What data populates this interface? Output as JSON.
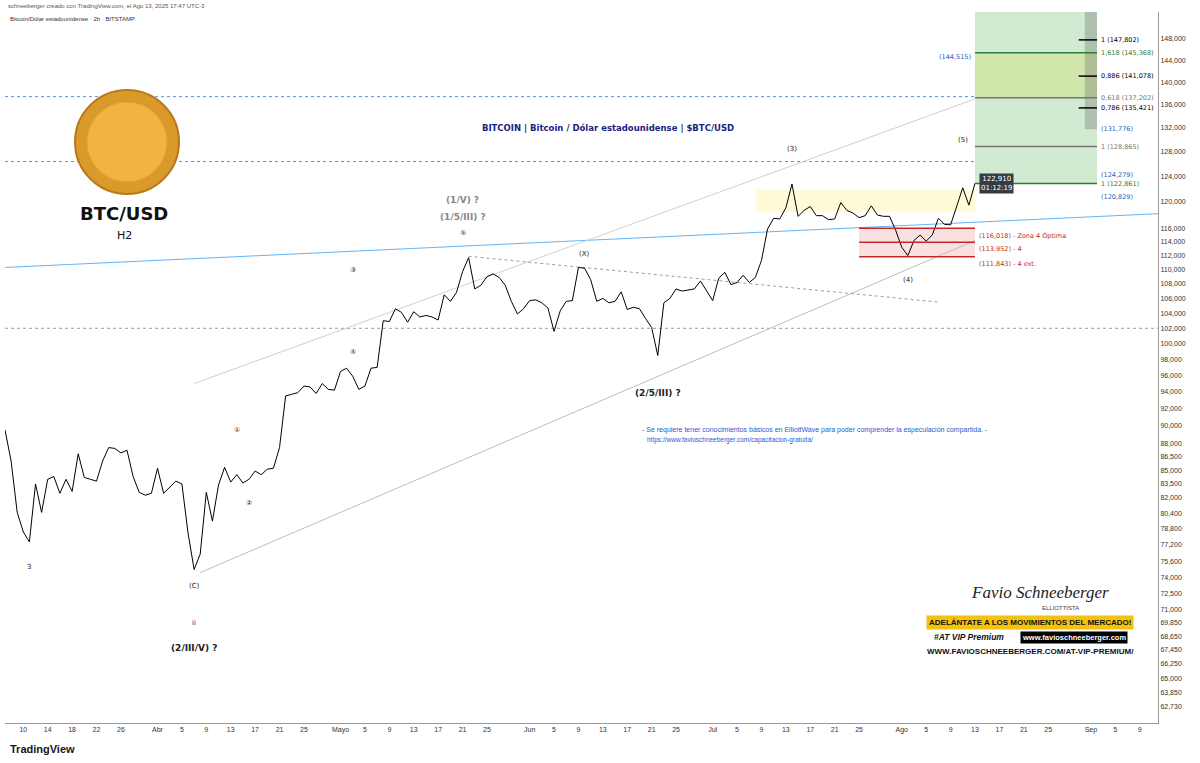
{
  "header": {
    "creator": "schneeberger creado con TradingView.com, el Ago 13, 2025 17:47 UTC-3",
    "symbol_line": "Bitcoin/Dólar estadounidense · 2h · BITSTAMP"
  },
  "logo": {
    "symbol": "BTC/USD",
    "timeframe": "H2"
  },
  "note": {
    "text": "- Se requiere tener conocimientos básicos en ElliottWave para poder comprender la especulación compartida. -",
    "link": "https://www.favioschneeberger.com/capacitacion-gratuita/"
  },
  "branding": {
    "name": "Favio Schneeberger",
    "role": "ELLIOTTISTA",
    "slogan": "ADELÁNTATE A LOS MOVIMIENTOS DEL MERCADO!",
    "vip": "#AT VIP Premium",
    "site": "www.favioschneeberger.com",
    "url": "WWW.FAVIOSCHNEEBERGER.COM/AT-VIP-PREMIUM/"
  },
  "footer": "TradingView",
  "chart_data": {
    "type": "line",
    "title": "BITCOIN | Bitcoin / Dólar estadounidense | $BTC/USD",
    "log": "y",
    "grid": false,
    "color": "#000000",
    "xlim": [
      "2025-03-07",
      "2025-09-12"
    ],
    "xticks": [
      {
        "value": "2025-03-10",
        "label": "10"
      },
      {
        "value": "2025-03-14",
        "label": "14"
      },
      {
        "value": "2025-03-18",
        "label": "18"
      },
      {
        "value": "2025-03-22",
        "label": "22"
      },
      {
        "value": "2025-03-26",
        "label": "26"
      },
      {
        "value": "2025-04-01",
        "label": "Abr"
      },
      {
        "value": "2025-04-05",
        "label": "5"
      },
      {
        "value": "2025-04-09",
        "label": "9"
      },
      {
        "value": "2025-04-13",
        "label": "13"
      },
      {
        "value": "2025-04-17",
        "label": "17"
      },
      {
        "value": "2025-04-21",
        "label": "21"
      },
      {
        "value": "2025-04-25",
        "label": "25"
      },
      {
        "value": "2025-05-01",
        "label": "Mayo"
      },
      {
        "value": "2025-05-05",
        "label": "5"
      },
      {
        "value": "2025-05-09",
        "label": "9"
      },
      {
        "value": "2025-05-13",
        "label": "13"
      },
      {
        "value": "2025-05-17",
        "label": "17"
      },
      {
        "value": "2025-05-21",
        "label": "21"
      },
      {
        "value": "2025-05-25",
        "label": "25"
      },
      {
        "value": "2025-06-01",
        "label": "Jun"
      },
      {
        "value": "2025-06-05",
        "label": "5"
      },
      {
        "value": "2025-06-09",
        "label": "9"
      },
      {
        "value": "2025-06-13",
        "label": "13"
      },
      {
        "value": "2025-06-17",
        "label": "17"
      },
      {
        "value": "2025-06-21",
        "label": "21"
      },
      {
        "value": "2025-06-25",
        "label": "25"
      },
      {
        "value": "2025-07-01",
        "label": "Jul"
      },
      {
        "value": "2025-07-05",
        "label": "5"
      },
      {
        "value": "2025-07-09",
        "label": "9"
      },
      {
        "value": "2025-07-13",
        "label": "13"
      },
      {
        "value": "2025-07-17",
        "label": "17"
      },
      {
        "value": "2025-07-21",
        "label": "21"
      },
      {
        "value": "2025-07-25",
        "label": "25"
      },
      {
        "value": "2025-08-01",
        "label": "Ago"
      },
      {
        "value": "2025-08-05",
        "label": "5"
      },
      {
        "value": "2025-08-09",
        "label": "9"
      },
      {
        "value": "2025-08-13",
        "label": "13"
      },
      {
        "value": "2025-08-17",
        "label": "17"
      },
      {
        "value": "2025-08-21",
        "label": "21"
      },
      {
        "value": "2025-08-25",
        "label": "25"
      },
      {
        "value": "2025-09-01",
        "label": "Sep"
      },
      {
        "value": "2025-09-05",
        "label": "5"
      },
      {
        "value": "2025-09-09",
        "label": "9"
      }
    ],
    "ylim": [
      61400,
      153200
    ],
    "yticks": [
      {
        "value": 148000,
        "label": "148,000"
      },
      {
        "value": 144000,
        "label": "144,000"
      },
      {
        "value": 140000,
        "label": "140,000"
      },
      {
        "value": 136000,
        "label": "136,000"
      },
      {
        "value": 132000,
        "label": "132,000"
      },
      {
        "value": 128000,
        "label": "128,000"
      },
      {
        "value": 124000,
        "label": "124,000"
      },
      {
        "value": 120000,
        "label": "120,000"
      },
      {
        "value": 116000,
        "label": "116,000"
      },
      {
        "value": 114000,
        "label": "114,000"
      },
      {
        "value": 112000,
        "label": "112,000"
      },
      {
        "value": 110000,
        "label": "110,000"
      },
      {
        "value": 108000,
        "label": "108,000"
      },
      {
        "value": 106000,
        "label": "106,000"
      },
      {
        "value": 104000,
        "label": "104,000"
      },
      {
        "value": 102000,
        "label": "102,000"
      },
      {
        "value": 100000,
        "label": "100,000"
      },
      {
        "value": 98000,
        "label": "98,000"
      },
      {
        "value": 96000,
        "label": "96,000"
      },
      {
        "value": 94000,
        "label": "94,000"
      },
      {
        "value": 92000,
        "label": "92,000"
      },
      {
        "value": 90000,
        "label": "90,000"
      },
      {
        "value": 88000,
        "label": "88,000"
      },
      {
        "value": 86500,
        "label": "86,500"
      },
      {
        "value": 85000,
        "label": "85,000"
      },
      {
        "value": 83500,
        "label": "83,500"
      },
      {
        "value": 82000,
        "label": "82,000"
      },
      {
        "value": 80400,
        "label": "80,400"
      },
      {
        "value": 78800,
        "label": "78,800"
      },
      {
        "value": 77200,
        "label": "77,200"
      },
      {
        "value": 75600,
        "label": "75,600"
      },
      {
        "value": 74000,
        "label": "74,000"
      },
      {
        "value": 72500,
        "label": "72,500"
      },
      {
        "value": 71000,
        "label": "71,000"
      },
      {
        "value": 69850,
        "label": "69,850"
      },
      {
        "value": 68650,
        "label": "68,650"
      },
      {
        "value": 67450,
        "label": "67,450"
      },
      {
        "value": 66250,
        "label": "66,250"
      },
      {
        "value": 65000,
        "label": "65,000"
      },
      {
        "value": 63850,
        "label": "63,850"
      },
      {
        "value": 62730,
        "label": "62,730"
      }
    ],
    "x": [
      "2025-03-07",
      "2025-03-08",
      "2025-03-09",
      "2025-03-10",
      "2025-03-11",
      "2025-03-12",
      "2025-03-13",
      "2025-03-14",
      "2025-03-15",
      "2025-03-16",
      "2025-03-17",
      "2025-03-18",
      "2025-03-19",
      "2025-03-20",
      "2025-03-21",
      "2025-03-22",
      "2025-03-23",
      "2025-03-24",
      "2025-03-25",
      "2025-03-26",
      "2025-03-27",
      "2025-03-28",
      "2025-03-29",
      "2025-03-30",
      "2025-03-31",
      "2025-04-01",
      "2025-04-02",
      "2025-04-03",
      "2025-04-04",
      "2025-04-05",
      "2025-04-06",
      "2025-04-07",
      "2025-04-08",
      "2025-04-09",
      "2025-04-10",
      "2025-04-11",
      "2025-04-12",
      "2025-04-13",
      "2025-04-14",
      "2025-04-15",
      "2025-04-16",
      "2025-04-17",
      "2025-04-18",
      "2025-04-19",
      "2025-04-20",
      "2025-04-21",
      "2025-04-22",
      "2025-04-23",
      "2025-04-24",
      "2025-04-25",
      "2025-04-26",
      "2025-04-27",
      "2025-04-28",
      "2025-04-29",
      "2025-04-30",
      "2025-05-01",
      "2025-05-02",
      "2025-05-03",
      "2025-05-04",
      "2025-05-05",
      "2025-05-06",
      "2025-05-07",
      "2025-05-08",
      "2025-05-09",
      "2025-05-10",
      "2025-05-11",
      "2025-05-12",
      "2025-05-13",
      "2025-05-14",
      "2025-05-15",
      "2025-05-16",
      "2025-05-17",
      "2025-05-18",
      "2025-05-19",
      "2025-05-20",
      "2025-05-21",
      "2025-05-22",
      "2025-05-23",
      "2025-05-24",
      "2025-05-25",
      "2025-05-26",
      "2025-05-27",
      "2025-05-28",
      "2025-05-29",
      "2025-05-30",
      "2025-05-31",
      "2025-06-01",
      "2025-06-02",
      "2025-06-03",
      "2025-06-04",
      "2025-06-05",
      "2025-06-06",
      "2025-06-07",
      "2025-06-08",
      "2025-06-09",
      "2025-06-10",
      "2025-06-11",
      "2025-06-12",
      "2025-06-13",
      "2025-06-14",
      "2025-06-15",
      "2025-06-16",
      "2025-06-17",
      "2025-06-18",
      "2025-06-19",
      "2025-06-20",
      "2025-06-21",
      "2025-06-22",
      "2025-06-23",
      "2025-06-24",
      "2025-06-25",
      "2025-06-26",
      "2025-06-27",
      "2025-06-28",
      "2025-06-29",
      "2025-06-30",
      "2025-07-01",
      "2025-07-02",
      "2025-07-03",
      "2025-07-04",
      "2025-07-05",
      "2025-07-06",
      "2025-07-07",
      "2025-07-08",
      "2025-07-09",
      "2025-07-10",
      "2025-07-11",
      "2025-07-12",
      "2025-07-13",
      "2025-07-14",
      "2025-07-15",
      "2025-07-16",
      "2025-07-17",
      "2025-07-18",
      "2025-07-19",
      "2025-07-20",
      "2025-07-21",
      "2025-07-22",
      "2025-07-23",
      "2025-07-24",
      "2025-07-25",
      "2025-07-26",
      "2025-07-27",
      "2025-07-28",
      "2025-07-29",
      "2025-07-30",
      "2025-07-31",
      "2025-08-01",
      "2025-08-02",
      "2025-08-03",
      "2025-08-04",
      "2025-08-05",
      "2025-08-06",
      "2025-08-07",
      "2025-08-08",
      "2025-08-09",
      "2025-08-10",
      "2025-08-11",
      "2025-08-12",
      "2025-08-13"
    ],
    "values": [
      89500,
      86000,
      80500,
      78500,
      77500,
      83500,
      80500,
      84000,
      84300,
      82500,
      84000,
      82700,
      86800,
      84200,
      84000,
      83800,
      86000,
      87500,
      87400,
      86900,
      87200,
      84300,
      82600,
      82300,
      82500,
      85200,
      82500,
      83200,
      83800,
      83500,
      78400,
      74800,
      76300,
      82600,
      79600,
      83400,
      85300,
      83700,
      84500,
      83600,
      84000,
      84900,
      84500,
      85100,
      85200,
      87500,
      93500,
      93700,
      93900,
      94700,
      94600,
      93800,
      95000,
      94300,
      94200,
      96500,
      96900,
      95900,
      94300,
      94700,
      96900,
      97000,
      103000,
      102900,
      104600,
      104100,
      102800,
      104200,
      103500,
      103700,
      103500,
      103100,
      106500,
      105600,
      106800,
      109700,
      111700,
      107300,
      107800,
      109000,
      109400,
      108900,
      107800,
      105600,
      103900,
      104600,
      105700,
      105800,
      105400,
      104700,
      101600,
      104300,
      105600,
      105700,
      110300,
      110200,
      108600,
      105600,
      106000,
      105400,
      105600,
      106900,
      104500,
      104800,
      104600,
      103300,
      102100,
      98500,
      105400,
      106000,
      107300,
      107000,
      107100,
      107300,
      108400,
      107100,
      105700,
      108800,
      109600,
      107900,
      108200,
      109200,
      108200,
      108900,
      111300,
      115900,
      117500,
      117400,
      119100,
      122800,
      117800,
      118700,
      119300,
      117900,
      117900,
      117300,
      117400,
      119900,
      118700,
      118300,
      117600,
      117900,
      119400,
      118000,
      117800,
      117800,
      115700,
      113200,
      112000,
      114200,
      115000,
      114100,
      115000,
      117500,
      116600,
      116500,
      119300,
      122200,
      119500,
      122910
    ],
    "last_price": {
      "value": 122910,
      "label": "122,910",
      "countdown": "01:12:19"
    },
    "zones": [
      {
        "x": [
          "2025-08-13",
          "2025-09-02"
        ],
        "y": [
          122861,
          153200
        ],
        "color": "#66bb6a"
      },
      {
        "x": [
          "2025-08-13",
          "2025-09-02"
        ],
        "y": [
          137202,
          145368
        ],
        "color": "#d4e157"
      },
      {
        "x": [
          "2025-08-31",
          "2025-09-02"
        ],
        "y": [
          131776,
          153200
        ],
        "color": "#616161"
      },
      {
        "x": [
          "2025-07-08",
          "2025-08-13"
        ],
        "y": [
          118500,
          121900
        ],
        "color": "#fff176"
      },
      {
        "x": [
          "2025-07-25",
          "2025-08-13"
        ],
        "y": [
          111843,
          116018
        ],
        "color": "#ef9a9a"
      }
    ],
    "levels": [
      {
        "value": 147802,
        "label": "1 (147,802)",
        "color": "#000000",
        "line_style": "solid",
        "x": [
          "2025-08-30",
          "2025-09-02"
        ]
      },
      {
        "value": 145368,
        "label": "1,618 (145,368)",
        "color": "#2e7d32",
        "line_style": "solid",
        "x": [
          "2025-08-13",
          "2025-09-02"
        ]
      },
      {
        "value": 144515,
        "label": "(144,515)",
        "color": "#1565c0",
        "line_style": "none",
        "x": [
          "2025-08-13",
          "2025-09-02"
        ]
      },
      {
        "value": 141078,
        "label": "0,886 (141,078)",
        "color": "#000000",
        "line_style": "solid",
        "x": [
          "2025-08-30",
          "2025-09-02"
        ]
      },
      {
        "value": 137202,
        "label": "0,618 (137,202)",
        "color": "#757575",
        "line_style": "solid",
        "x": [
          "2025-08-13",
          "2025-09-02"
        ]
      },
      {
        "value": 135421,
        "label": "0,786 (135,421)",
        "color": "#000000",
        "line_style": "solid",
        "x": [
          "2025-08-30",
          "2025-09-02"
        ]
      },
      {
        "value": 131776,
        "label": "(131,776)",
        "color": "#1565c0",
        "line_style": "none",
        "x": [
          "2025-08-13",
          "2025-09-02"
        ]
      },
      {
        "value": 128865,
        "label": "1 (128,865)",
        "color": "#757575",
        "line_style": "solid",
        "x": [
          "2025-08-13",
          "2025-09-02"
        ]
      },
      {
        "value": 124279,
        "label": "(124,279)",
        "color": "#1565c0",
        "line_style": "none",
        "x": [
          "2025-08-13",
          "2025-09-02"
        ]
      },
      {
        "value": 122861,
        "label": "1 (122,861)",
        "color": "#2e7d32",
        "line_style": "solid",
        "x": [
          "2025-08-13",
          "2025-09-02"
        ]
      },
      {
        "value": 120829,
        "label": "(120,829)",
        "color": "#1565c0",
        "line_style": "none",
        "x": [
          "2025-08-13",
          "2025-09-02"
        ]
      },
      {
        "value": 116018,
        "label": "(116,018) - Zona 4 Óptima",
        "color": "#c62828",
        "line_style": "solid",
        "x": [
          "2025-07-25",
          "2025-08-13"
        ]
      },
      {
        "value": 113952,
        "label": "(113,952) - 4",
        "color": "#c62828",
        "line_style": "solid",
        "x": [
          "2025-07-25",
          "2025-08-13"
        ]
      },
      {
        "value": 111843,
        "label": "(111,843) - 4 ext.",
        "color": "#c62828",
        "line_style": "solid",
        "x": [
          "2025-07-25",
          "2025-08-13"
        ]
      }
    ],
    "hlines": [
      {
        "value": 137400,
        "x": [
          "2025-03-07",
          "2025-08-13"
        ],
        "color": "#5c8ee6",
        "line_style": "dotted"
      },
      {
        "value": 126400,
        "x": [
          "2025-03-07",
          "2025-08-13"
        ],
        "color": "#5c8ee6",
        "line_style": "dotted"
      },
      {
        "value": 102000,
        "x": [
          "2025-03-07",
          "2025-09-12"
        ],
        "color": "#9e9e9e",
        "line_style": "dotted"
      }
    ],
    "trendlines": [
      {
        "x": [
          "2025-03-07",
          "2025-09-12"
        ],
        "y": [
          110300,
          118200
        ],
        "color": "#64b5f6",
        "line_style": "solid"
      },
      {
        "x": [
          "2025-04-08",
          "2025-08-13"
        ],
        "y": [
          74500,
          114200
        ],
        "color": "#bdbdbd",
        "line_style": "solid"
      },
      {
        "x": [
          "2025-04-07",
          "2025-08-13"
        ],
        "y": [
          95000,
          137000
        ],
        "color": "#d0d0d0",
        "line_style": "solid"
      },
      {
        "x": [
          "2025-05-22",
          "2025-08-07"
        ],
        "y": [
          111900,
          105500
        ],
        "color": "#9e9e9e",
        "line_style": "dotted"
      }
    ],
    "annotations": [
      {
        "x": "2025-04-07",
        "y": 67600,
        "text": "(2/III/V) ?",
        "color": "#222222"
      },
      {
        "x": "2025-04-07",
        "y": 69800,
        "text": "ii",
        "color": "#1a237e"
      },
      {
        "x": "2025-04-07",
        "y": 73200,
        "text": "(C)",
        "color": "#222222"
      },
      {
        "x": "2025-03-11",
        "y": 75000,
        "text": "3",
        "color": "#222222"
      },
      {
        "x": "2025-04-14",
        "y": 89500,
        "text": "①",
        "color": "#222222"
      },
      {
        "x": "2025-04-16",
        "y": 81500,
        "text": "②",
        "color": "#222222"
      },
      {
        "x": "2025-05-03",
        "y": 110000,
        "text": "③",
        "color": "#222222"
      },
      {
        "x": "2025-05-03",
        "y": 99000,
        "text": "④",
        "color": "#222222"
      },
      {
        "x": "2025-05-21",
        "y": 120300,
        "text": "(1/V) ?",
        "color": "#888888"
      },
      {
        "x": "2025-05-21",
        "y": 117700,
        "text": "(1/5/III) ?",
        "color": "#888888"
      },
      {
        "x": "2025-05-21",
        "y": 115300,
        "text": "⑤",
        "color": "#222222"
      },
      {
        "x": "2025-06-10",
        "y": 112200,
        "text": "(X)",
        "color": "#222222"
      },
      {
        "x": "2025-06-22",
        "y": 93800,
        "text": "(2/5/III) ?",
        "color": "#222222"
      },
      {
        "x": "2025-07-14",
        "y": 128500,
        "text": "(3)",
        "color": "#222222"
      },
      {
        "x": "2025-08-02",
        "y": 108500,
        "text": "(4)",
        "color": "#222222"
      },
      {
        "x": "2025-08-11",
        "y": 130000,
        "text": "(5)",
        "color": "#222222"
      }
    ]
  }
}
